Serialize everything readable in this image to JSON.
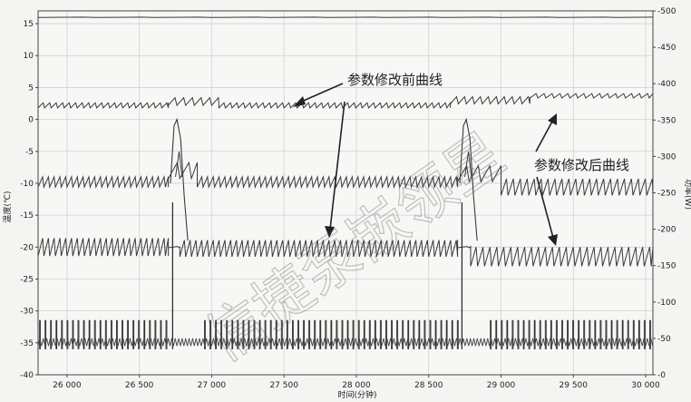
{
  "chart_data": {
    "type": "line",
    "xlabel": "时间(分钟)",
    "ylabel_left": "温度(℃)",
    "ylabel_right": "功率(W)",
    "xlim": [
      25800,
      30050
    ],
    "ylim_left": [
      -40,
      17
    ],
    "ylim_right": [
      0,
      500
    ],
    "x_ticks": [
      26000,
      26500,
      27000,
      27500,
      28000,
      28500,
      29000,
      29500,
      30000
    ],
    "x_tick_labels": [
      "26 000",
      "26 500",
      "27 000",
      "27 500",
      "28 000",
      "28 500",
      "29 000",
      "29 500",
      "30 000"
    ],
    "y_left_ticks": [
      -40,
      -35,
      -30,
      -25,
      -20,
      -15,
      -10,
      -5,
      0,
      5,
      10,
      15
    ],
    "y_right_ticks": [
      0,
      50,
      100,
      150,
      200,
      250,
      300,
      350,
      400,
      450,
      500
    ],
    "grid": true,
    "defrost_events": [
      26740,
      28740
    ],
    "series": [
      {
        "key": "top",
        "axis": "left",
        "segments": [
          {
            "x0": 25800,
            "x1": 30050,
            "base": 16.0,
            "amp": 0.05,
            "period": 400
          }
        ]
      },
      {
        "key": "s2",
        "axis": "left",
        "segments": [
          {
            "x0": 25800,
            "x1": 26700,
            "base": 2.2,
            "amp": 0.8,
            "period": 45
          },
          {
            "x0": 26700,
            "x1": 27050,
            "base": 2.8,
            "amp": 1.2,
            "period": 60
          },
          {
            "x0": 27050,
            "x1": 28650,
            "base": 2.2,
            "amp": 0.8,
            "period": 45
          },
          {
            "x0": 28650,
            "x1": 29200,
            "base": 3.0,
            "amp": 1.1,
            "period": 55
          },
          {
            "x0": 29200,
            "x1": 30050,
            "base": 3.7,
            "amp": 0.7,
            "period": 55
          }
        ]
      },
      {
        "key": "s3",
        "axis": "left",
        "segments": [
          {
            "x0": 25800,
            "x1": 26700,
            "base": -9.8,
            "amp": 1.6,
            "period": 40
          },
          {
            "x0": 26700,
            "x1": 26900,
            "base": -8.0,
            "amp": 2.5,
            "period": 80
          },
          {
            "x0": 26900,
            "x1": 28700,
            "base": -9.8,
            "amp": 1.6,
            "period": 40
          },
          {
            "x0": 28700,
            "x1": 29000,
            "base": -8.5,
            "amp": 2.5,
            "period": 80
          },
          {
            "x0": 29000,
            "x1": 30050,
            "base": -10.6,
            "amp": 2.6,
            "period": 48
          }
        ]
      },
      {
        "key": "s4",
        "axis": "left",
        "segments": [
          {
            "x0": 25800,
            "x1": 26700,
            "base": -20.0,
            "amp": 2.8,
            "period": 40
          },
          {
            "x0": 26700,
            "x1": 26780,
            "base": -20.0,
            "amp": 0.2,
            "period": 80
          },
          {
            "x0": 26780,
            "x1": 28700,
            "base": -20.2,
            "amp": 2.6,
            "period": 40
          },
          {
            "x0": 28700,
            "x1": 28790,
            "base": -20.0,
            "amp": 0.2,
            "period": 80
          },
          {
            "x0": 28790,
            "x1": 30050,
            "base": -21.5,
            "amp": 3.0,
            "period": 48
          }
        ]
      },
      {
        "key": "power",
        "axis": "left",
        "baseline": -36.0,
        "pulse_top": -31.5,
        "pulse_period": 38,
        "noise_band": [
          -35.5,
          -34.3
        ]
      }
    ],
    "annotations": [
      {
        "text": "参数修改前曲线"
      },
      {
        "text": "参数修改后曲线"
      }
    ],
    "watermark": "信捷泵 嵌 领星"
  }
}
